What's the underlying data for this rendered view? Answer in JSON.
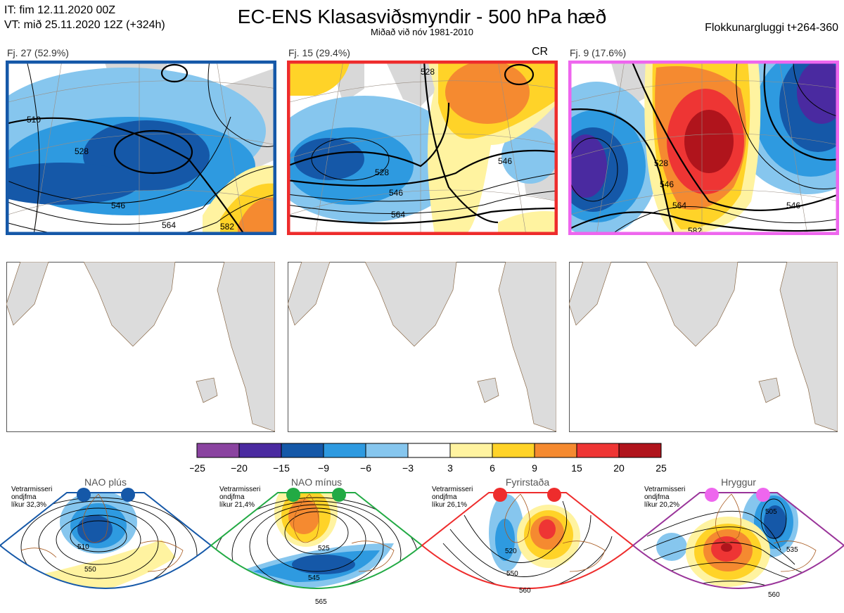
{
  "header": {
    "line1": "IT: fim 12.11.2020 00Z",
    "line2": "VT: mið 25.11.2020 12Z  (+324h)",
    "title": "EC-ENS Klasasviðsmyndir - 500 hPa hæð",
    "subtitle": "Miðað við nóv 1981-2010",
    "window": "Flokkunargluggi t+264-360"
  },
  "panels": [
    {
      "label": "Fj. 27 (52.9%)",
      "border": "#1558a8",
      "contours": [
        "510",
        "528",
        "546",
        "564",
        "582"
      ]
    },
    {
      "label": "Fj. 15 (29.4%)",
      "border": "#ee2c2c",
      "tag": "CR",
      "contours": [
        "528",
        "546",
        "564",
        "546",
        "528"
      ]
    },
    {
      "label": "Fj. 9 (17.6%)",
      "border": "#ee66ee",
      "contours": [
        "528",
        "546",
        "564",
        "546",
        "582"
      ]
    }
  ],
  "colorbar": {
    "ticks": [
      "−25",
      "−20",
      "−15",
      "−9",
      "−6",
      "−3",
      "3",
      "6",
      "9",
      "15",
      "20",
      "25"
    ],
    "colors": [
      "#8a43a0",
      "#4a2aa0",
      "#1558a8",
      "#2e9ae0",
      "#86c6ee",
      "#ffffff",
      "#fff3a0",
      "#ffd328",
      "#f58a30",
      "#ee3534",
      "#b0141c"
    ]
  },
  "regimes": [
    {
      "title": "NAO plús",
      "note": [
        "Vetrarmisseri",
        "ondjfma",
        "líkur 32,3%"
      ],
      "color": "#1558a8",
      "contours": [
        "510",
        "550"
      ]
    },
    {
      "title": "NAO mínus",
      "note": [
        "Vetrarmisseri",
        "ondjfma",
        "líkur 21,4%"
      ],
      "color": "#22aa44",
      "contours": [
        "525",
        "545",
        "565"
      ]
    },
    {
      "title": "Fyrirstaða",
      "note": [
        "Vetrarmisseri",
        "ondjfma",
        "líkur 26,1%"
      ],
      "color": "#ee2c2c",
      "contours": [
        "520",
        "550",
        "560"
      ]
    },
    {
      "title": "Hryggur",
      "note": [
        "Vetrarmisseri",
        "ondjfma",
        "líkur 20,2%"
      ],
      "color": "#ee66ee",
      "contours": [
        "505",
        "535",
        "560"
      ]
    }
  ]
}
